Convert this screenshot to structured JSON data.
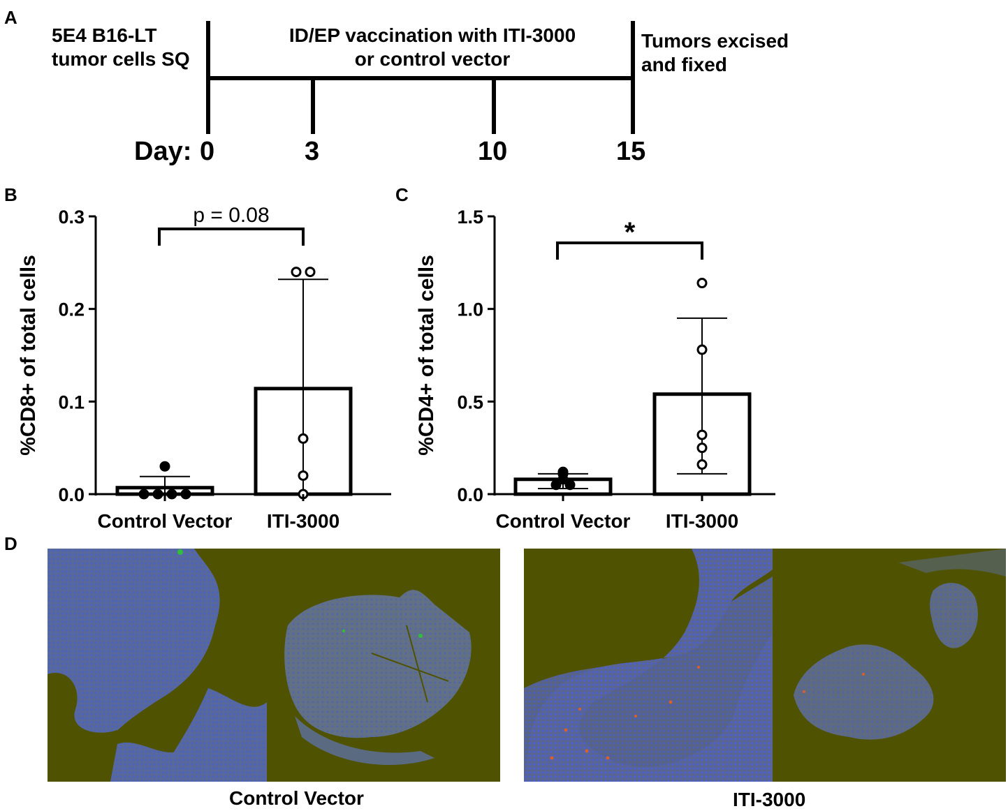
{
  "panels": {
    "a": "A",
    "b": "B",
    "c": "C",
    "d": "D"
  },
  "timeline": {
    "left_text": "5E4 B16-LT\ntumor cells SQ",
    "middle_text": "ID/EP vaccination with ITI-3000\nor control vector",
    "right_text": "Tumors excised\nand fixed",
    "day_label": "Day:",
    "days": [
      "0",
      "3",
      "10",
      "15"
    ]
  },
  "chart_data": [
    {
      "type": "bar",
      "panel": "B",
      "categories": [
        "Control Vector",
        "ITI-3000"
      ],
      "values": [
        0.007,
        0.114
      ],
      "error_upper": [
        0.019,
        0.232
      ],
      "error_lower": [
        0.0,
        0.0
      ],
      "points": [
        [
          0.0,
          0.0,
          0.0,
          0.0,
          0.03
        ],
        [
          0.24,
          0.24,
          0.06,
          0.02,
          0.0
        ]
      ],
      "ylabel": "%CD8+ of total cells",
      "ylim": [
        0,
        0.3
      ],
      "yticks": [
        "0.0",
        "0.1",
        "0.2",
        "0.3"
      ],
      "annotation": "p = 0.08"
    },
    {
      "type": "bar",
      "panel": "C",
      "categories": [
        "Control Vector",
        "ITI-3000"
      ],
      "values": [
        0.08,
        0.54
      ],
      "error_upper": [
        0.11,
        0.95
      ],
      "error_lower": [
        0.03,
        0.11
      ],
      "points": [
        [
          0.12,
          0.11,
          0.05,
          0.05,
          0.08
        ],
        [
          1.14,
          0.78,
          0.32,
          0.25,
          0.16
        ]
      ],
      "ylabel": "%CD4+ of total cells",
      "ylim": [
        0,
        1.5
      ],
      "yticks": [
        "0.0",
        "0.5",
        "1.0",
        "1.5"
      ],
      "annotation": "*"
    }
  ],
  "micrographs": {
    "groups": [
      "Control Vector",
      "ITI-3000"
    ],
    "colors": {
      "background": "#4f5200",
      "tissue": "#5e6e8a",
      "nuclei": "#4a63b8",
      "cd8": "#2fbf3a",
      "cd4": "#d9602c"
    }
  }
}
